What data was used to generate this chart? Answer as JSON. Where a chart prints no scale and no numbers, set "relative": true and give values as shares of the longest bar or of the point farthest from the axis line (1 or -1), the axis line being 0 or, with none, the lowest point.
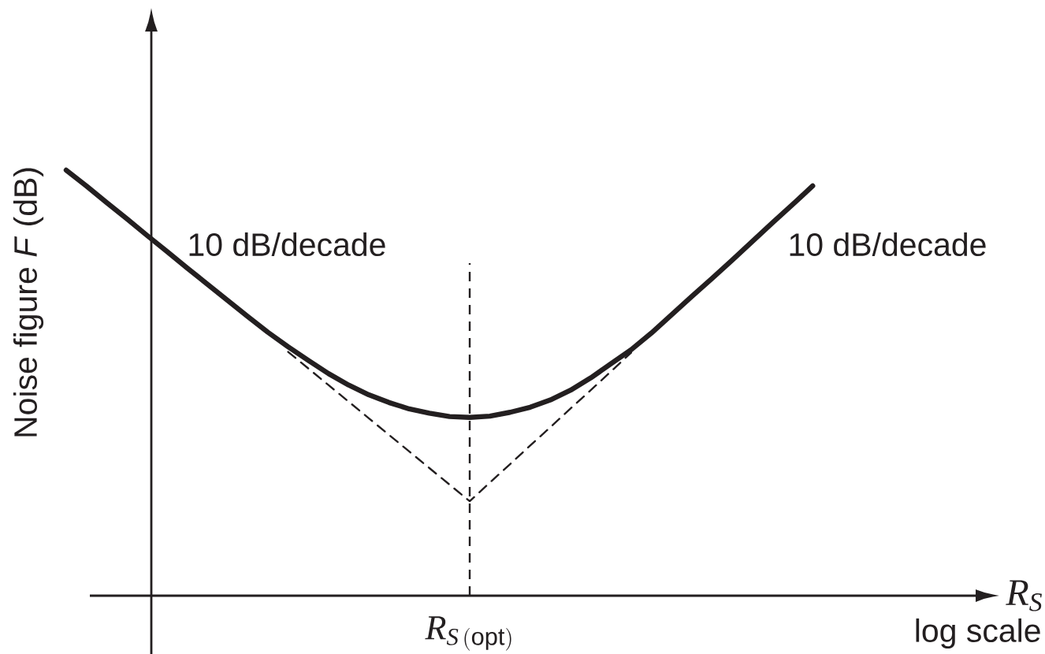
{
  "chart_data": {
    "type": "line",
    "relative": true,
    "xlabel": "R$_{S}$",
    "ylabel": "Noise figure *F* (dB)",
    "categories": [
      null,
      null,
      null,
      null,
      null,
      null,
      null,
      null,
      null,
      null,
      null,
      null,
      null,
      null,
      null,
      null,
      null,
      null,
      null,
      null,
      null,
      null,
      null,
      null,
      null,
      null,
      null,
      null,
      null,
      null,
      null,
      null,
      null,
      null,
      null,
      null,
      null,
      null
    ],
    "series": [
      {
        "color": "#231f20",
        "line_style": "solid",
        "values": [
          1.0,
          0.963,
          0.924,
          0.886,
          0.847,
          0.809,
          0.77,
          0.732,
          0.694,
          0.656,
          0.619,
          0.585,
          0.553,
          0.522,
          0.495,
          0.472,
          0.454,
          0.439,
          0.429,
          0.421,
          0.419,
          0.422,
          0.431,
          0.443,
          0.46,
          0.483,
          0.512,
          0.545,
          0.578,
          0.617,
          0.66,
          0.703,
          0.745,
          0.788,
          0.832,
          0.876,
          0.919,
          0.963
        ]
      },
      {
        "color": "#231f20",
        "line_style": "dashed",
        "values": [
          null,
          null,
          null,
          null,
          null,
          null,
          null,
          null,
          null,
          null,
          null,
          0.573,
          0.534,
          0.495,
          0.456,
          0.417,
          0.378,
          0.339,
          0.3,
          0.261,
          0.222,
          0.266,
          0.309,
          0.353,
          0.396,
          0.44,
          0.483,
          0.527,
          0.571,
          null,
          null,
          null,
          null,
          null,
          null,
          null,
          null,
          null
        ]
      }
    ],
    "annotations": [
      "10 dB/decade",
      "10 dB/decade",
      "\\mathit{R}_{\\mathit{S}\\,\\mathsf{(opt)}}",
      "log scale"
    ]
  }
}
